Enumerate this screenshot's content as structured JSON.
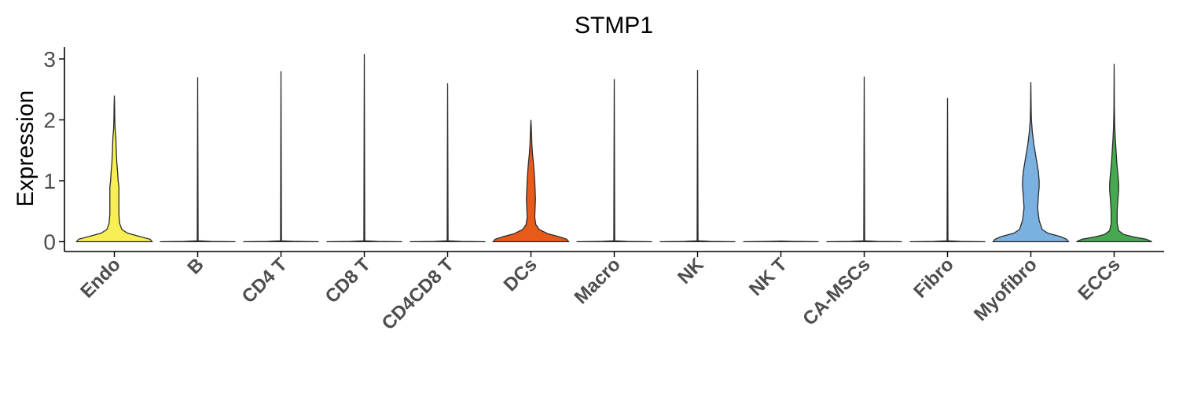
{
  "chart_data": {
    "type": "violin",
    "title": "STMP1",
    "ylabel": "Expression",
    "xlabel": "",
    "ylim": [
      0,
      3.2
    ],
    "yticks": [
      0,
      1,
      2,
      3
    ],
    "grid": false,
    "legend": "none",
    "categories": [
      "Endo",
      "B",
      "CD4 T",
      "CD8 T",
      "CD4CD8 T",
      "DCs",
      "Macro",
      "NK",
      "NK T",
      "CA-MSCs",
      "Fibro",
      "Myofibro",
      "ECCs"
    ],
    "violins": [
      {
        "category": "Endo",
        "color": "#f7ef53",
        "max": 2.4,
        "profile": [
          [
            0,
            1.0
          ],
          [
            0.04,
            0.95
          ],
          [
            0.08,
            0.7
          ],
          [
            0.14,
            0.35
          ],
          [
            0.2,
            0.2
          ],
          [
            0.3,
            0.14
          ],
          [
            0.45,
            0.12
          ],
          [
            0.6,
            0.12
          ],
          [
            0.75,
            0.12
          ],
          [
            0.9,
            0.12
          ],
          [
            1.0,
            0.1
          ],
          [
            1.15,
            0.085
          ],
          [
            1.3,
            0.065
          ],
          [
            1.5,
            0.05
          ],
          [
            1.7,
            0.04
          ],
          [
            1.85,
            0.02
          ],
          [
            2.0,
            0.012
          ],
          [
            2.2,
            0.008
          ],
          [
            2.4,
            0.0
          ]
        ]
      },
      {
        "category": "B",
        "color": "#f2f2f2",
        "max": 2.7,
        "profile": [
          [
            0,
            1.0
          ],
          [
            0.005,
            0.35
          ],
          [
            0.015,
            0.012
          ],
          [
            2.7,
            0.0
          ]
        ]
      },
      {
        "category": "CD4 T",
        "color": "#f2f2f2",
        "max": 2.8,
        "profile": [
          [
            0,
            1.0
          ],
          [
            0.005,
            0.35
          ],
          [
            0.015,
            0.012
          ],
          [
            2.8,
            0.0
          ]
        ]
      },
      {
        "category": "CD8 T",
        "color": "#f2f2f2",
        "max": 3.08,
        "profile": [
          [
            0,
            1.0
          ],
          [
            0.005,
            0.35
          ],
          [
            0.015,
            0.012
          ],
          [
            3.08,
            0.0
          ]
        ]
      },
      {
        "category": "CD4CD8 T",
        "color": "#f2f2f2",
        "max": 2.6,
        "profile": [
          [
            0,
            1.0
          ],
          [
            0.005,
            0.35
          ],
          [
            0.015,
            0.012
          ],
          [
            2.6,
            0.0
          ]
        ]
      },
      {
        "category": "DCs",
        "color": "#e85a19",
        "max": 2.0,
        "profile": [
          [
            0,
            1.0
          ],
          [
            0.04,
            0.95
          ],
          [
            0.08,
            0.75
          ],
          [
            0.13,
            0.45
          ],
          [
            0.2,
            0.22
          ],
          [
            0.28,
            0.13
          ],
          [
            0.4,
            0.1
          ],
          [
            0.55,
            0.11
          ],
          [
            0.7,
            0.12
          ],
          [
            0.85,
            0.11
          ],
          [
            1.0,
            0.1
          ],
          [
            1.15,
            0.085
          ],
          [
            1.3,
            0.065
          ],
          [
            1.45,
            0.04
          ],
          [
            1.6,
            0.025
          ],
          [
            1.8,
            0.015
          ],
          [
            2.0,
            0.0
          ]
        ]
      },
      {
        "category": "Macro",
        "color": "#f2f2f2",
        "max": 2.67,
        "profile": [
          [
            0,
            1.0
          ],
          [
            0.005,
            0.35
          ],
          [
            0.015,
            0.012
          ],
          [
            2.67,
            0.0
          ]
        ]
      },
      {
        "category": "NK",
        "color": "#f2f2f2",
        "max": 2.82,
        "profile": [
          [
            0,
            1.0
          ],
          [
            0.005,
            0.35
          ],
          [
            0.015,
            0.012
          ],
          [
            2.82,
            0.0
          ]
        ]
      },
      {
        "category": "NK T",
        "color": "#f2f2f2",
        "max": 0.0,
        "profile": [
          [
            0,
            1.0
          ],
          [
            0.005,
            0.3
          ],
          [
            0.01,
            0.0
          ]
        ]
      },
      {
        "category": "CA-MSCs",
        "color": "#f2f2f2",
        "max": 2.71,
        "profile": [
          [
            0,
            1.0
          ],
          [
            0.005,
            0.35
          ],
          [
            0.015,
            0.012
          ],
          [
            2.71,
            0.0
          ]
        ]
      },
      {
        "category": "Fibro",
        "color": "#f2f2f2",
        "max": 2.36,
        "profile": [
          [
            0,
            1.0
          ],
          [
            0.005,
            0.35
          ],
          [
            0.015,
            0.012
          ],
          [
            2.36,
            0.0
          ]
        ]
      },
      {
        "category": "Myofibro",
        "color": "#7bb1e1",
        "max": 2.62,
        "profile": [
          [
            0,
            1.0
          ],
          [
            0.04,
            0.95
          ],
          [
            0.08,
            0.8
          ],
          [
            0.14,
            0.45
          ],
          [
            0.2,
            0.3
          ],
          [
            0.35,
            0.22
          ],
          [
            0.55,
            0.18
          ],
          [
            0.75,
            0.2
          ],
          [
            0.9,
            0.22
          ],
          [
            1.0,
            0.22
          ],
          [
            1.15,
            0.2
          ],
          [
            1.3,
            0.16
          ],
          [
            1.45,
            0.12
          ],
          [
            1.6,
            0.08
          ],
          [
            1.8,
            0.04
          ],
          [
            2.0,
            0.015
          ],
          [
            2.2,
            0.008
          ],
          [
            2.62,
            0.0
          ]
        ]
      },
      {
        "category": "ECCs",
        "color": "#46a84f",
        "max": 2.92,
        "profile": [
          [
            0,
            1.0
          ],
          [
            0.04,
            0.85
          ],
          [
            0.08,
            0.5
          ],
          [
            0.12,
            0.25
          ],
          [
            0.18,
            0.12
          ],
          [
            0.3,
            0.08
          ],
          [
            0.5,
            0.08
          ],
          [
            0.7,
            0.1
          ],
          [
            0.85,
            0.12
          ],
          [
            0.95,
            0.12
          ],
          [
            1.1,
            0.1
          ],
          [
            1.3,
            0.07
          ],
          [
            1.5,
            0.05
          ],
          [
            1.7,
            0.03
          ],
          [
            1.9,
            0.015
          ],
          [
            2.2,
            0.006
          ],
          [
            2.92,
            0.0
          ]
        ]
      }
    ]
  }
}
